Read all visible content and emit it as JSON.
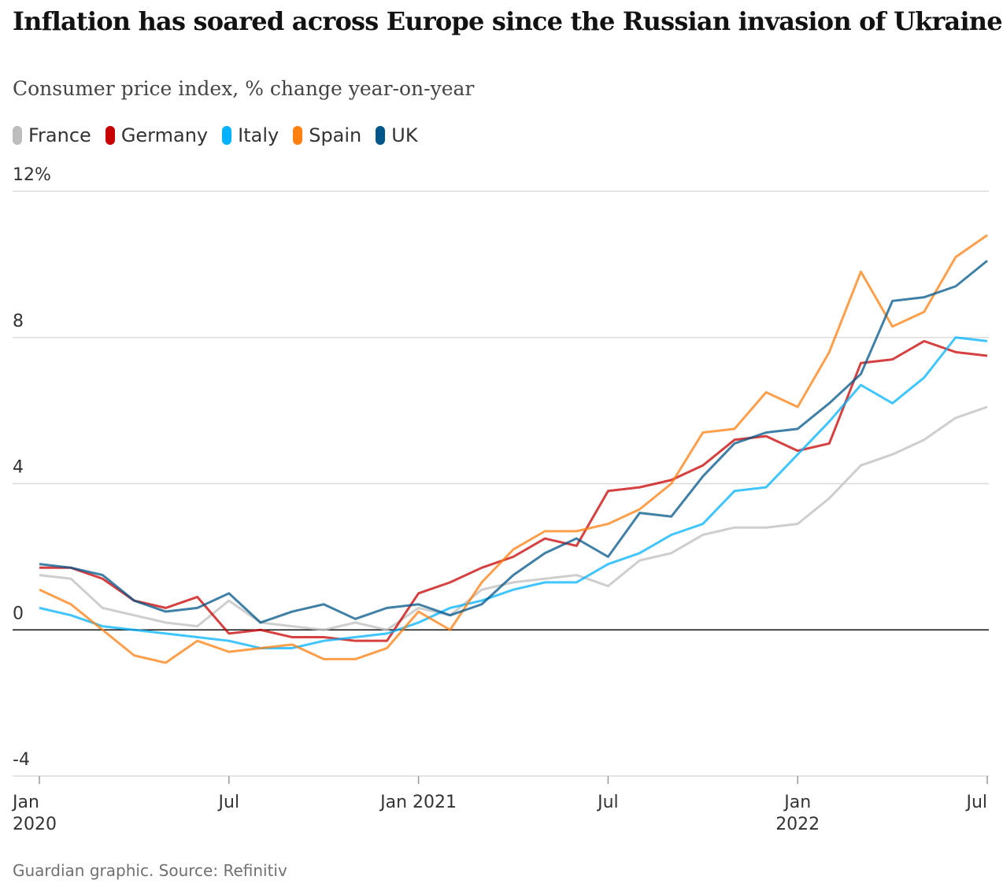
{
  "chart_data": {
    "type": "line",
    "title": "Inflation has soared across Europe since the Russian invasion of Ukraine",
    "subtitle": "Consumer price index, % change year-on-year",
    "source": "Guardian graphic. Source: Refinitiv",
    "x": [
      "2020-01",
      "2020-02",
      "2020-03",
      "2020-04",
      "2020-05",
      "2020-06",
      "2020-07",
      "2020-08",
      "2020-09",
      "2020-10",
      "2020-11",
      "2020-12",
      "2021-01",
      "2021-02",
      "2021-03",
      "2021-04",
      "2021-05",
      "2021-06",
      "2021-07",
      "2021-08",
      "2021-09",
      "2021-10",
      "2021-11",
      "2021-12",
      "2022-01",
      "2022-02",
      "2022-03",
      "2022-04",
      "2022-05",
      "2022-06",
      "2022-07"
    ],
    "xticks": [
      {
        "value": "2020-01",
        "label": [
          "Jan",
          "2020"
        ]
      },
      {
        "value": "2020-07",
        "label": "Jul"
      },
      {
        "value": "2021-01",
        "label": "Jan 2021"
      },
      {
        "value": "2021-07",
        "label": "Jul"
      },
      {
        "value": "2022-01",
        "label": [
          "Jan",
          "2022"
        ]
      },
      {
        "value": "2022-07",
        "label": "Jul"
      }
    ],
    "ylim": [
      -4,
      12
    ],
    "yticks": [
      {
        "value": 12,
        "label": "12%"
      },
      8,
      4,
      0,
      -4
    ],
    "grid": true,
    "series": [
      {
        "name": "France",
        "color": "#bdbdbd",
        "values": [
          1.5,
          1.4,
          0.6,
          0.4,
          0.2,
          0.1,
          0.8,
          0.2,
          0.1,
          0.0,
          0.2,
          0.0,
          0.6,
          0.4,
          1.1,
          1.3,
          1.4,
          1.5,
          1.2,
          1.9,
          2.1,
          2.6,
          2.8,
          2.8,
          2.9,
          3.6,
          4.5,
          4.8,
          5.2,
          5.8,
          6.1
        ]
      },
      {
        "name": "Germany",
        "color": "#c70000",
        "values": [
          1.7,
          1.7,
          1.4,
          0.8,
          0.6,
          0.9,
          -0.1,
          0.0,
          -0.2,
          -0.2,
          -0.3,
          -0.3,
          1.0,
          1.3,
          1.7,
          2.0,
          2.5,
          2.3,
          3.8,
          3.9,
          4.1,
          4.5,
          5.2,
          5.3,
          4.9,
          5.1,
          7.3,
          7.4,
          7.9,
          7.6,
          7.5
        ]
      },
      {
        "name": "Italy",
        "color": "#00b2ff",
        "values": [
          0.6,
          0.4,
          0.1,
          0.0,
          -0.1,
          -0.2,
          -0.3,
          -0.5,
          -0.5,
          -0.3,
          -0.2,
          -0.1,
          0.2,
          0.6,
          0.8,
          1.1,
          1.3,
          1.3,
          1.8,
          2.1,
          2.6,
          2.9,
          3.8,
          3.9,
          4.8,
          5.7,
          6.7,
          6.2,
          6.9,
          8.0,
          7.9
        ]
      },
      {
        "name": "Spain",
        "color": "#ff7f0f",
        "values": [
          1.1,
          0.7,
          0.0,
          -0.7,
          -0.9,
          -0.3,
          -0.6,
          -0.5,
          -0.4,
          -0.8,
          -0.8,
          -0.5,
          0.5,
          0.0,
          1.3,
          2.2,
          2.7,
          2.7,
          2.9,
          3.3,
          4.0,
          5.4,
          5.5,
          6.5,
          6.1,
          7.6,
          9.8,
          8.3,
          8.7,
          10.2,
          10.8
        ]
      },
      {
        "name": "UK",
        "color": "#005689",
        "values": [
          1.8,
          1.7,
          1.5,
          0.8,
          0.5,
          0.6,
          1.0,
          0.2,
          0.5,
          0.7,
          0.3,
          0.6,
          0.7,
          0.4,
          0.7,
          1.5,
          2.1,
          2.5,
          2.0,
          3.2,
          3.1,
          4.2,
          5.1,
          5.4,
          5.5,
          6.2,
          7.0,
          9.0,
          9.1,
          9.4,
          10.1
        ]
      }
    ]
  }
}
